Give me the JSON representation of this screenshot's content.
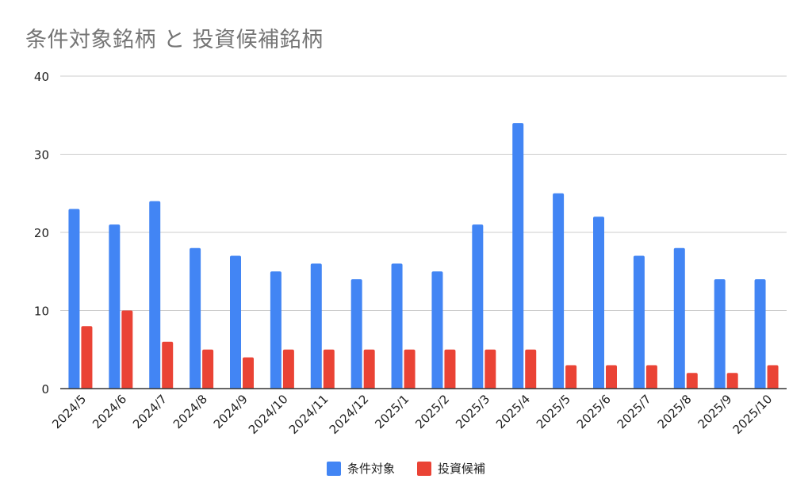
{
  "chart_data": {
    "type": "bar",
    "title": "条件対象銘柄 と 投資候補銘柄",
    "xlabel": "",
    "ylabel": "",
    "ylim": [
      0,
      40
    ],
    "yticks": [
      0,
      10,
      20,
      30,
      40
    ],
    "grid": true,
    "legend_position": "bottom",
    "categories": [
      "2024/5",
      "2024/6",
      "2024/7",
      "2024/8",
      "2024/9",
      "2024/10",
      "2024/11",
      "2024/12",
      "2025/1",
      "2025/2",
      "2025/3",
      "2025/4",
      "2025/5",
      "2025/6",
      "2025/7",
      "2025/8",
      "2025/9",
      "2025/10"
    ],
    "series": [
      {
        "name": "条件対象",
        "color": "#4285F4",
        "values": [
          23,
          21,
          24,
          18,
          17,
          15,
          16,
          14,
          16,
          15,
          21,
          34,
          25,
          22,
          17,
          18,
          14,
          14
        ]
      },
      {
        "name": "投資候補",
        "color": "#EA4335",
        "values": [
          8,
          10,
          6,
          5,
          4,
          5,
          5,
          5,
          5,
          5,
          5,
          5,
          3,
          3,
          3,
          2,
          2,
          3
        ]
      }
    ]
  }
}
